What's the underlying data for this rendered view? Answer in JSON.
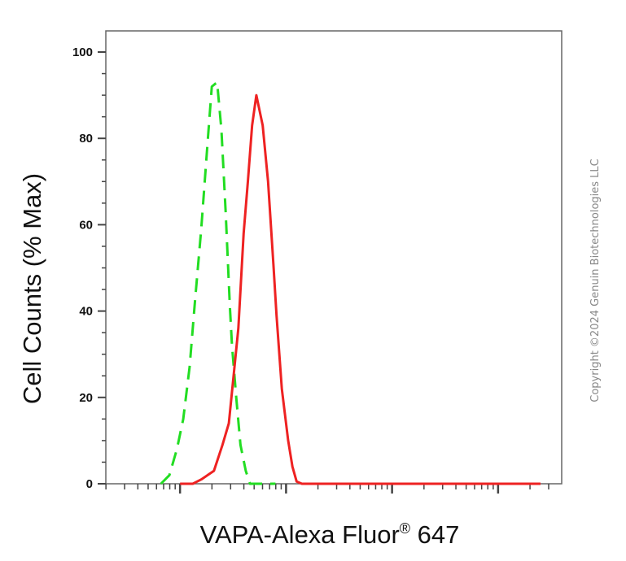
{
  "chart_data": {
    "type": "line",
    "title": "",
    "xlabel": "VAPA-Alexa Fluor® 647",
    "ylabel": "Cell Counts (% Max)",
    "xscale": "log",
    "ylim": [
      0,
      100
    ],
    "y_ticks": [
      0,
      20,
      40,
      60,
      80,
      100
    ],
    "y_tick_labels": [
      "0",
      "20",
      "40",
      "60",
      "80",
      "100"
    ],
    "x_tick_labels": [],
    "grid": false,
    "legend": "none",
    "series": [
      {
        "style": "dashed",
        "color": "#22dd22",
        "x": [
          1.82,
          1.9,
          1.97,
          2.03,
          2.09,
          2.14,
          2.2,
          2.26,
          2.3,
          2.35,
          2.39,
          2.43,
          2.47,
          2.49,
          2.53,
          2.57,
          2.62,
          2.66,
          2.7,
          2.74,
          2.78,
          2.84,
          2.9
        ],
        "y": [
          0,
          2,
          8,
          15,
          27,
          42,
          59,
          79,
          92,
          93,
          82,
          63,
          41,
          32,
          20,
          9,
          3,
          0,
          0,
          0,
          0,
          0,
          0
        ]
      },
      {
        "style": "solid",
        "color": "#ee2222",
        "x": [
          2.0,
          2.12,
          2.2,
          2.32,
          2.4,
          2.46,
          2.55,
          2.6,
          2.64,
          2.68,
          2.72,
          2.78,
          2.83,
          2.88,
          2.91,
          2.96,
          3.02,
          3.06,
          3.1,
          3.15,
          3.2,
          3.26,
          3.35,
          3.5,
          3.7,
          4.0,
          4.5,
          5.0,
          5.4
        ],
        "y": [
          0,
          0,
          1,
          3,
          9,
          14,
          36,
          58,
          70,
          83,
          90,
          83,
          70,
          51,
          39,
          22,
          10,
          4,
          0.5,
          0,
          0,
          0,
          0,
          0,
          0,
          0,
          0,
          0,
          0
        ]
      }
    ]
  },
  "copyright": "Copyright ©2024 Genuin Biotechnologies LLC",
  "colors": {
    "negative_control": "#22dd22",
    "sample": "#ee2222",
    "axis": "#555555"
  }
}
